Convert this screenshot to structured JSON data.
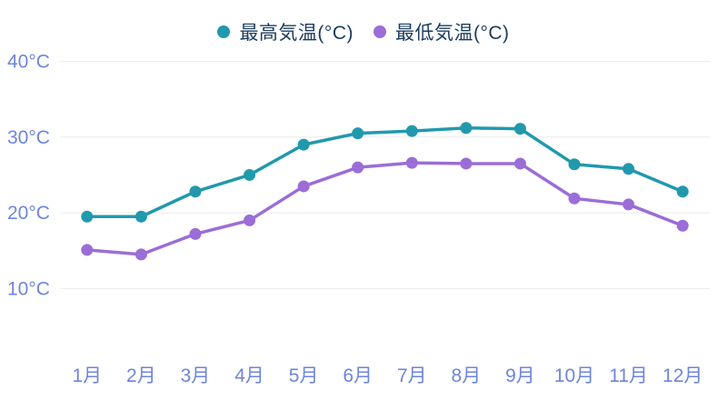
{
  "legend": {
    "items": [
      {
        "label": "最高気温(°C)",
        "color": "#2199ad"
      },
      {
        "label": "最低気温(°C)",
        "color": "#9b6dd6"
      }
    ]
  },
  "chart_data": {
    "type": "line",
    "title": "",
    "categories": [
      "1月",
      "2月",
      "3月",
      "4月",
      "5月",
      "6月",
      "7月",
      "8月",
      "9月",
      "10月",
      "11月",
      "12月"
    ],
    "series": [
      {
        "name": "最高気温(°C)",
        "key": "max-temp",
        "color": "#2199ad",
        "values": [
          19.5,
          19.5,
          22.8,
          25.0,
          29.0,
          30.5,
          30.8,
          31.2,
          31.1,
          26.4,
          25.8,
          22.8
        ]
      },
      {
        "name": "最低気温(°C)",
        "key": "min-temp",
        "color": "#9b6dd6",
        "values": [
          15.1,
          14.5,
          17.2,
          19.0,
          23.5,
          26.0,
          26.6,
          26.5,
          26.5,
          21.9,
          21.1,
          18.3
        ]
      }
    ],
    "xlabel": "",
    "ylabel": "",
    "y_ticks": [
      {
        "value": 40,
        "label": "40°C"
      },
      {
        "value": 30,
        "label": "30°C"
      },
      {
        "value": 20,
        "label": "20°C"
      },
      {
        "value": 10,
        "label": "10°C"
      }
    ],
    "ylim": [
      10,
      40
    ],
    "grid": true,
    "legend_position": "top",
    "colors": {
      "axis_label": "#6d85dc",
      "legend_text": "#1b3b5d",
      "gridline": "#ececec",
      "background": "#ffffff"
    }
  }
}
